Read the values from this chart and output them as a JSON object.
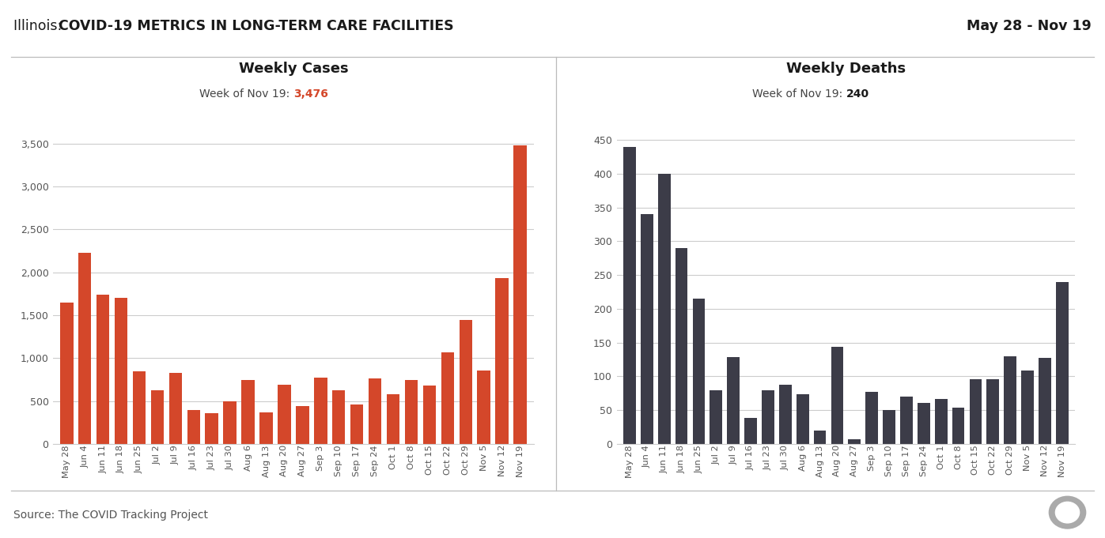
{
  "main_title": "Illinois: COVID-19 METRICS IN LONG-TERM CARE FACILITIES",
  "date_range": "May 28 - Nov 19",
  "source": "Source: The COVID Tracking Project",
  "cases_title": "Weekly Cases",
  "cases_subtitle_prefix": "Week of Nov 19: ",
  "cases_latest_value": "3,476",
  "deaths_title": "Weekly Deaths",
  "deaths_subtitle_prefix": "Week of Nov 19: ",
  "deaths_latest_value": "240",
  "cases_bar_color": "#d4472a",
  "deaths_bar_color": "#3c3c48",
  "highlight_color_cases": "#d4472a",
  "highlight_color_deaths": "#1a1a1a",
  "x_labels": [
    "May 28",
    "Jun 4",
    "Jun 11",
    "Jun 18",
    "Jun 25",
    "Jul 2",
    "Jul 9",
    "Jul 16",
    "Jul 23",
    "Jul 30",
    "Aug 6",
    "Aug 13",
    "Aug 20",
    "Aug 27",
    "Sep 3",
    "Sep 10",
    "Sep 17",
    "Sep 24",
    "Oct 1",
    "Oct 8",
    "Oct 15",
    "Oct 22",
    "Oct 29",
    "Nov 5",
    "Nov 12",
    "Nov 19"
  ],
  "cases_values": [
    1650,
    2230,
    1740,
    1700,
    850,
    625,
    825,
    390,
    355,
    500,
    740,
    365,
    685,
    445,
    775,
    620,
    460,
    765,
    580,
    740,
    680,
    1065,
    1445,
    855,
    1930,
    3476
  ],
  "deaths_values": [
    440,
    340,
    400,
    290,
    215,
    79,
    128,
    38,
    79,
    87,
    74,
    20,
    144,
    7,
    77,
    50,
    70,
    61,
    66,
    54,
    96,
    96,
    130,
    108,
    127,
    240
  ],
  "cases_ylim": [
    0,
    3700
  ],
  "cases_yticks": [
    0,
    500,
    1000,
    1500,
    2000,
    2500,
    3000,
    3500
  ],
  "deaths_ylim": [
    0,
    470
  ],
  "deaths_yticks": [
    0,
    50,
    100,
    150,
    200,
    250,
    300,
    350,
    400,
    450
  ],
  "bg_color": "#ffffff",
  "grid_color": "#cccccc",
  "axis_line_color": "#cccccc",
  "tick_label_color": "#555555",
  "title_color": "#1a1a1a",
  "subtitle_color": "#444444",
  "divider_color": "#bbbbbb"
}
